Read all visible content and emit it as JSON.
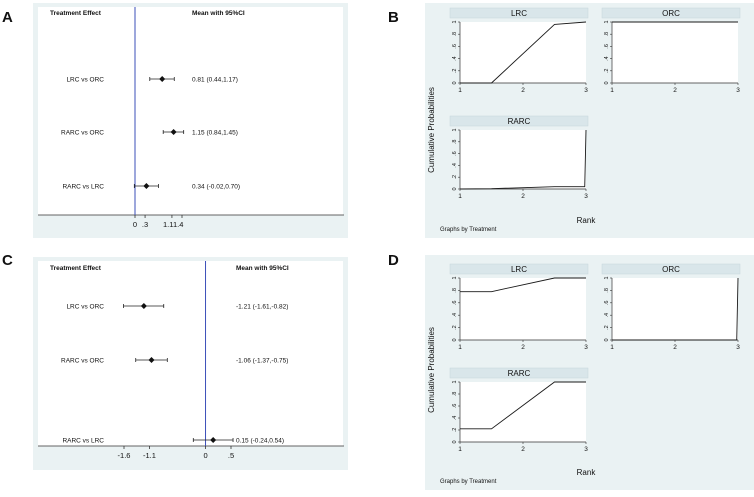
{
  "panels": {
    "A": {
      "letter": "A"
    },
    "B": {
      "letter": "B"
    },
    "C": {
      "letter": "C"
    },
    "D": {
      "letter": "D"
    }
  },
  "chart_data": [
    {
      "id": "A",
      "type": "forest",
      "header_left": "Treatment Effect",
      "header_right": "Mean with 95%CI",
      "xlim": [
        -0.4,
        2.1
      ],
      "ref_line": 0,
      "ticks": [
        {
          "label": "0",
          "value": 0
        },
        {
          "label": ".3",
          "value": 0.3
        },
        {
          "label": "1.1",
          "value": 1.1
        },
        {
          "label": "1.4",
          "value": 1.4
        }
      ],
      "rows": [
        {
          "label": "LRC vs ORC",
          "mean": 0.81,
          "lo": 0.44,
          "hi": 1.17,
          "text": "0.81 (0.44,1.17)"
        },
        {
          "label": "RARC vs ORC",
          "mean": 1.15,
          "lo": 0.84,
          "hi": 1.45,
          "text": "1.15 (0.84,1.45)"
        },
        {
          "label": "RARC vs LRC",
          "mean": 0.34,
          "lo": -0.02,
          "hi": 0.7,
          "text": "0.34 (-0.02,0.70)"
        }
      ]
    },
    {
      "id": "B",
      "type": "line",
      "ylabel": "Cumulative Probabilities",
      "xlabel": "Rank",
      "note": "Graphs by Treatment",
      "xlim": [
        1,
        3
      ],
      "ylim": [
        0,
        1
      ],
      "xticks": [
        "1",
        "2",
        "3"
      ],
      "yticks": [
        "0",
        ".2",
        ".4",
        ".6",
        ".8",
        "1"
      ],
      "series": [
        {
          "name": "LRC",
          "x": [
            1,
            1.5,
            2.5,
            3
          ],
          "y": [
            0,
            0,
            0.96,
            1.0
          ]
        },
        {
          "name": "ORC",
          "x": [
            1,
            3
          ],
          "y": [
            1,
            1
          ]
        },
        {
          "name": "RARC",
          "x": [
            1,
            1.5,
            2.5,
            2.98,
            3
          ],
          "y": [
            0,
            0.005,
            0.04,
            0.04,
            1.0
          ]
        }
      ]
    },
    {
      "id": "C",
      "type": "forest",
      "header_left": "Treatment Effect",
      "header_right": "Mean with 95%CI",
      "xlim": [
        -2.1,
        1.4
      ],
      "ref_line": 0,
      "ticks": [
        {
          "label": "-1.6",
          "value": -1.6
        },
        {
          "label": "-1.1",
          "value": -1.1
        },
        {
          "label": "0",
          "value": 0
        },
        {
          "label": ".5",
          "value": 0.5
        }
      ],
      "rows": [
        {
          "label": "LRC vs ORC",
          "mean": -1.21,
          "lo": -1.61,
          "hi": -0.82,
          "text": "-1.21 (-1.61,-0.82)"
        },
        {
          "label": "RARC vs ORC",
          "mean": -1.06,
          "lo": -1.37,
          "hi": -0.75,
          "text": "-1.06 (-1.37,-0.75)"
        },
        {
          "label": "RARC vs LRC",
          "mean": 0.15,
          "lo": -0.24,
          "hi": 0.54,
          "text": "0.15 (-0.24,0.54)"
        }
      ]
    },
    {
      "id": "D",
      "type": "line",
      "ylabel": "Cumulative Probabilities",
      "xlabel": "Rank",
      "note": "Graphs by Treatment",
      "xlim": [
        1,
        3
      ],
      "ylim": [
        0,
        1
      ],
      "xticks": [
        "1",
        "2",
        "3"
      ],
      "yticks": [
        "0",
        ".2",
        ".4",
        ".6",
        ".8",
        "1"
      ],
      "series": [
        {
          "name": "LRC",
          "x": [
            1,
            1.5,
            2.5,
            3
          ],
          "y": [
            0.78,
            0.78,
            1.0,
            1.0
          ]
        },
        {
          "name": "ORC",
          "x": [
            1,
            2.98,
            3
          ],
          "y": [
            0,
            0,
            1.0
          ]
        },
        {
          "name": "RARC",
          "x": [
            1,
            1.5,
            2.5,
            3
          ],
          "y": [
            0.22,
            0.22,
            1.0,
            1.0
          ]
        }
      ]
    }
  ]
}
